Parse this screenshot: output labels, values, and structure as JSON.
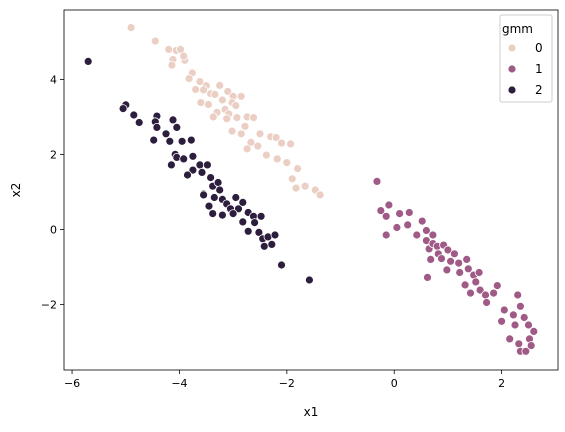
{
  "chart_data": {
    "type": "scatter",
    "xlabel": "x1",
    "ylabel": "x2",
    "xlim": [
      -6.15,
      3.05
    ],
    "ylim": [
      -3.75,
      5.85
    ],
    "xticks": [
      -6,
      -4,
      -2,
      0,
      2
    ],
    "yticks": [
      -2,
      0,
      2,
      4
    ],
    "xtick_labels": [
      "−6",
      "−4",
      "−2",
      "0",
      "2"
    ],
    "ytick_labels": [
      "−2",
      "0",
      "2",
      "4"
    ],
    "grid": false,
    "legend": {
      "title": "gmm",
      "placement": "top-right"
    },
    "series": [
      {
        "name": "0",
        "color": "#ebcfc5",
        "points": [
          [
            -4.9,
            5.38
          ],
          [
            -4.45,
            5.02
          ],
          [
            -4.2,
            4.8
          ],
          [
            -4.06,
            4.77
          ],
          [
            -4.12,
            4.53
          ],
          [
            -4.14,
            4.38
          ],
          [
            -3.9,
            4.51
          ],
          [
            -3.76,
            4.17
          ],
          [
            -3.62,
            3.94
          ],
          [
            -3.7,
            3.73
          ],
          [
            -3.5,
            3.83
          ],
          [
            -3.25,
            3.84
          ],
          [
            -3.42,
            3.62
          ],
          [
            -3.6,
            3.38
          ],
          [
            -3.46,
            3.33
          ],
          [
            -3.34,
            3.6
          ],
          [
            -3.1,
            3.68
          ],
          [
            -3.0,
            3.55
          ],
          [
            -3.2,
            3.45
          ],
          [
            -3.02,
            3.38
          ],
          [
            -3.15,
            3.2
          ],
          [
            -3.3,
            3.12
          ],
          [
            -3.08,
            3.08
          ],
          [
            -2.95,
            3.3
          ],
          [
            -2.85,
            3.55
          ],
          [
            -3.37,
            3.0
          ],
          [
            -3.12,
            2.95
          ],
          [
            -2.93,
            2.98
          ],
          [
            -2.74,
            3.0
          ],
          [
            -2.62,
            2.98
          ],
          [
            -2.78,
            2.75
          ],
          [
            -3.02,
            2.62
          ],
          [
            -2.85,
            2.55
          ],
          [
            -2.5,
            2.55
          ],
          [
            -2.67,
            2.32
          ],
          [
            -2.54,
            2.22
          ],
          [
            -2.74,
            2.15
          ],
          [
            -2.3,
            2.47
          ],
          [
            -2.2,
            2.45
          ],
          [
            -2.1,
            2.3
          ],
          [
            -1.93,
            2.28
          ],
          [
            -2.38,
            1.98
          ],
          [
            -2.18,
            1.88
          ],
          [
            -2.0,
            1.78
          ],
          [
            -1.8,
            1.62
          ],
          [
            -1.9,
            1.35
          ],
          [
            -1.83,
            1.1
          ],
          [
            -1.66,
            1.15
          ],
          [
            -1.47,
            1.05
          ],
          [
            -1.38,
            0.92
          ],
          [
            -3.98,
            4.8
          ],
          [
            -3.92,
            4.62
          ],
          [
            -3.82,
            4.02
          ],
          [
            -3.55,
            3.72
          ]
        ]
      },
      {
        "name": "1",
        "color": "#a05a86",
        "points": [
          [
            -0.32,
            1.28
          ],
          [
            -0.25,
            0.5
          ],
          [
            -0.1,
            0.65
          ],
          [
            -0.15,
            0.35
          ],
          [
            -0.15,
            -0.15
          ],
          [
            0.1,
            0.42
          ],
          [
            0.05,
            0.05
          ],
          [
            0.25,
            0.12
          ],
          [
            0.28,
            0.45
          ],
          [
            0.42,
            -0.15
          ],
          [
            0.52,
            0.22
          ],
          [
            0.6,
            -0.03
          ],
          [
            0.6,
            -0.3
          ],
          [
            0.65,
            -0.52
          ],
          [
            0.72,
            -0.15
          ],
          [
            0.72,
            -0.38
          ],
          [
            0.68,
            -0.8
          ],
          [
            0.8,
            -0.45
          ],
          [
            0.82,
            -0.65
          ],
          [
            0.88,
            -0.78
          ],
          [
            0.92,
            -0.42
          ],
          [
            1.0,
            -0.55
          ],
          [
            1.05,
            -0.85
          ],
          [
            0.98,
            -1.08
          ],
          [
            0.62,
            -1.28
          ],
          [
            1.12,
            -0.65
          ],
          [
            1.2,
            -0.9
          ],
          [
            1.22,
            -1.15
          ],
          [
            1.35,
            -0.8
          ],
          [
            1.38,
            -1.05
          ],
          [
            1.32,
            -1.48
          ],
          [
            1.48,
            -1.22
          ],
          [
            1.52,
            -1.4
          ],
          [
            1.58,
            -1.15
          ],
          [
            1.42,
            -1.7
          ],
          [
            1.6,
            -1.62
          ],
          [
            1.7,
            -1.75
          ],
          [
            1.72,
            -1.95
          ],
          [
            1.85,
            -1.7
          ],
          [
            1.92,
            -1.5
          ],
          [
            2.05,
            -2.15
          ],
          [
            2.0,
            -2.45
          ],
          [
            2.22,
            -2.28
          ],
          [
            2.25,
            -2.55
          ],
          [
            2.3,
            -1.75
          ],
          [
            2.35,
            -2.05
          ],
          [
            2.42,
            -2.35
          ],
          [
            2.5,
            -2.55
          ],
          [
            2.52,
            -2.92
          ],
          [
            2.55,
            -3.1
          ],
          [
            2.6,
            -2.72
          ],
          [
            2.32,
            -3.05
          ],
          [
            2.35,
            -3.25
          ],
          [
            2.45,
            -3.25
          ],
          [
            2.15,
            -2.92
          ]
        ]
      },
      {
        "name": "2",
        "color": "#2d1e3e",
        "points": [
          [
            -5.7,
            4.48
          ],
          [
            -5.0,
            3.32
          ],
          [
            -5.05,
            3.22
          ],
          [
            -4.85,
            3.05
          ],
          [
            -4.75,
            2.85
          ],
          [
            -4.42,
            3.02
          ],
          [
            -4.45,
            2.87
          ],
          [
            -4.42,
            2.72
          ],
          [
            -4.12,
            2.92
          ],
          [
            -4.05,
            2.72
          ],
          [
            -4.25,
            2.55
          ],
          [
            -4.48,
            2.38
          ],
          [
            -4.18,
            2.35
          ],
          [
            -3.95,
            2.35
          ],
          [
            -3.78,
            2.38
          ],
          [
            -4.08,
            2.0
          ],
          [
            -4.05,
            1.92
          ],
          [
            -3.92,
            1.88
          ],
          [
            -4.15,
            1.72
          ],
          [
            -3.75,
            1.95
          ],
          [
            -3.62,
            1.72
          ],
          [
            -3.48,
            1.72
          ],
          [
            -3.58,
            1.52
          ],
          [
            -3.42,
            1.38
          ],
          [
            -3.75,
            1.58
          ],
          [
            -3.85,
            1.45
          ],
          [
            -3.38,
            1.15
          ],
          [
            -3.28,
            1.25
          ],
          [
            -3.25,
            1.05
          ],
          [
            -3.55,
            0.95
          ],
          [
            -3.35,
            0.85
          ],
          [
            -3.2,
            0.8
          ],
          [
            -3.12,
            0.68
          ],
          [
            -2.95,
            0.85
          ],
          [
            -3.45,
            0.62
          ],
          [
            -3.05,
            0.55
          ],
          [
            -2.9,
            0.55
          ],
          [
            -2.82,
            0.72
          ],
          [
            -3.38,
            0.42
          ],
          [
            -3.2,
            0.38
          ],
          [
            -3.0,
            0.42
          ],
          [
            -2.72,
            0.45
          ],
          [
            -2.62,
            0.35
          ],
          [
            -2.6,
            0.18
          ],
          [
            -2.48,
            0.35
          ],
          [
            -2.82,
            0.2
          ],
          [
            -2.72,
            -0.05
          ],
          [
            -2.52,
            -0.08
          ],
          [
            -2.45,
            -0.25
          ],
          [
            -2.35,
            -0.2
          ],
          [
            -2.22,
            -0.15
          ],
          [
            -2.42,
            -0.45
          ],
          [
            -2.28,
            -0.4
          ],
          [
            -2.1,
            -0.95
          ],
          [
            -1.58,
            -1.35
          ],
          [
            -3.55,
            0.92
          ]
        ]
      }
    ]
  }
}
